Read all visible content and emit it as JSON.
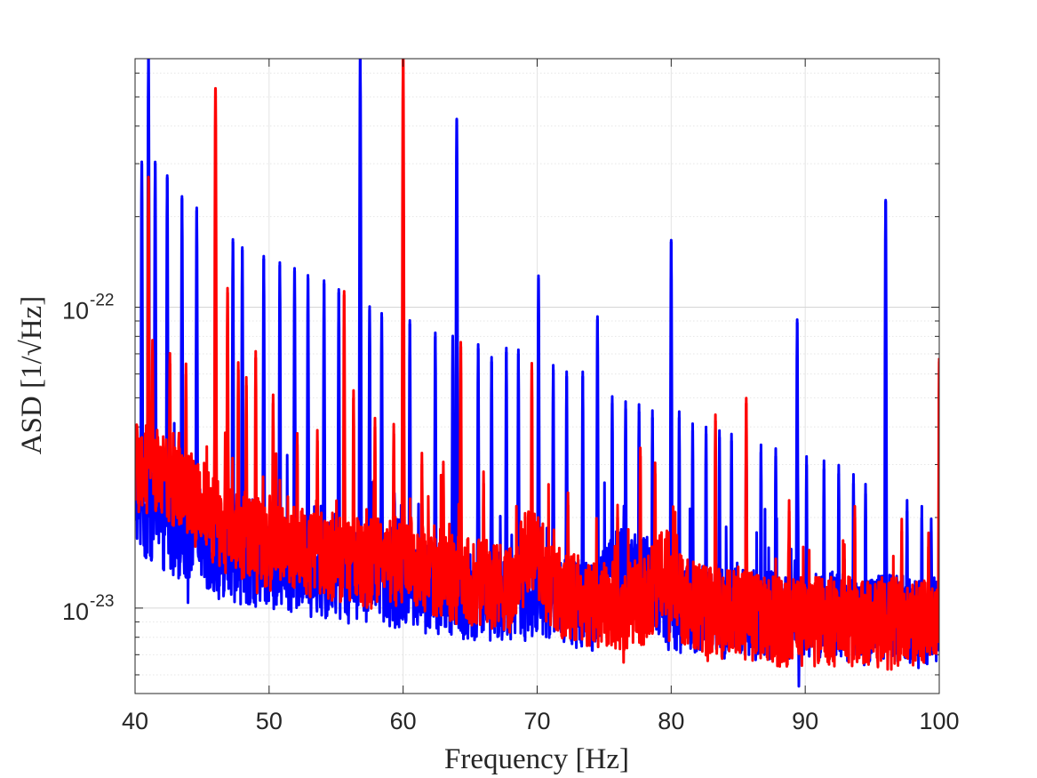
{
  "chart_data": {
    "type": "line",
    "xlabel": "Frequency [Hz]",
    "ylabel": "ASD [1/√Hz]",
    "x_scale": "linear",
    "y_scale": "log",
    "xlim": [
      40,
      100
    ],
    "ylim": [
      5.2e-24,
      6.7e-22
    ],
    "x_ticks": [
      40,
      50,
      60,
      70,
      80,
      90,
      100
    ],
    "x_tick_labels": [
      "40",
      "50",
      "60",
      "70",
      "80",
      "90",
      "100"
    ],
    "y_ticks": [
      1e-23,
      1e-22
    ],
    "y_tick_labels": [
      {
        "base": "10",
        "exp": "-23"
      },
      {
        "base": "10",
        "exp": "-22"
      }
    ],
    "grid": true,
    "minor_grid": true,
    "legend": "none",
    "series": [
      {
        "color": "#0000ff",
        "x": [
          40.0,
          40.5,
          41.0,
          41.5,
          42.0,
          43.0,
          44.0,
          44.5,
          45.0,
          46.0,
          47.0,
          48.0,
          50.0,
          52.0,
          54.0,
          56.0,
          58.0,
          60.0,
          62.0,
          64.0,
          66.0,
          68.0,
          70.0,
          72.0,
          74.0,
          75.5,
          76.0,
          78.0,
          80.0,
          82.0,
          84.0,
          86.0,
          88.0,
          90.0,
          92.0,
          94.0,
          96.0,
          98.0,
          100.0
        ],
        "y": [
          2.4e-23,
          2.1e-23,
          2e-23,
          2e-23,
          1.9e-23,
          1.8e-23,
          1.7e-23,
          2e-23,
          1.7e-23,
          1.5e-23,
          1.5e-23,
          1.45e-23,
          1.4e-23,
          1.35e-23,
          1.3e-23,
          1.3e-23,
          1.25e-23,
          1.2e-23,
          1.15e-23,
          1.1e-23,
          1.1e-23,
          1.1e-23,
          1.15e-23,
          1.05e-23,
          1e-23,
          1.25e-23,
          1.3e-23,
          1.25e-23,
          1e-23,
          1e-23,
          9.5e-24,
          9.5e-24,
          9.5e-24,
          9.5e-24,
          9.5e-24,
          9e-24,
          9.5e-24,
          9e-24,
          9e-24
        ],
        "peaks": [
          {
            "f": 40.5,
            "a": 3e-22
          },
          {
            "f": 41.0,
            "a": 6.7e-22
          },
          {
            "f": 41.5,
            "a": 3e-22
          },
          {
            "f": 42.4,
            "a": 2.7e-22
          },
          {
            "f": 43.5,
            "a": 2.3e-22
          },
          {
            "f": 44.6,
            "a": 2.1e-22
          },
          {
            "f": 46.0,
            "a": 1.8e-22
          },
          {
            "f": 47.3,
            "a": 1.65e-22
          },
          {
            "f": 48.0,
            "a": 1.55e-22
          },
          {
            "f": 49.6,
            "a": 1.45e-22
          },
          {
            "f": 50.8,
            "a": 1.38e-22
          },
          {
            "f": 51.9,
            "a": 1.32e-22
          },
          {
            "f": 52.9,
            "a": 1.25e-22
          },
          {
            "f": 54.1,
            "a": 1.2e-22
          },
          {
            "f": 55.2,
            "a": 1.12e-22
          },
          {
            "f": 56.8,
            "a": 6.7e-22
          },
          {
            "f": 57.5,
            "a": 9.8e-23
          },
          {
            "f": 58.4,
            "a": 9.3e-23
          },
          {
            "f": 60.5,
            "a": 8.8e-23
          },
          {
            "f": 62.4,
            "a": 8e-23
          },
          {
            "f": 63.7,
            "a": 7.8e-23
          },
          {
            "f": 64.0,
            "a": 4.2e-22
          },
          {
            "f": 65.6,
            "a": 7.3e-23
          },
          {
            "f": 66.6,
            "a": 6.6e-23
          },
          {
            "f": 67.7,
            "a": 7.1e-23
          },
          {
            "f": 68.6,
            "a": 7e-23
          },
          {
            "f": 70.1,
            "a": 1.25e-22
          },
          {
            "f": 71.2,
            "a": 6.2e-23
          },
          {
            "f": 72.2,
            "a": 5.9e-23
          },
          {
            "f": 73.4,
            "a": 5.9e-23
          },
          {
            "f": 74.5,
            "a": 9.1e-23
          },
          {
            "f": 75.6,
            "a": 4.8e-23
          },
          {
            "f": 76.6,
            "a": 4.6e-23
          },
          {
            "f": 77.6,
            "a": 4.5e-23
          },
          {
            "f": 78.6,
            "a": 4.3e-23
          },
          {
            "f": 80.0,
            "a": 1.65e-22
          },
          {
            "f": 80.6,
            "a": 4.3e-23
          },
          {
            "f": 81.6,
            "a": 3.9e-23
          },
          {
            "f": 82.6,
            "a": 3.8e-23
          },
          {
            "f": 83.6,
            "a": 3.7e-23
          },
          {
            "f": 84.5,
            "a": 3.6e-23
          },
          {
            "f": 85.6,
            "a": 3.6e-23
          },
          {
            "f": 86.7,
            "a": 3.3e-23
          },
          {
            "f": 87.8,
            "a": 3.2e-23
          },
          {
            "f": 89.4,
            "a": 8.9e-23
          },
          {
            "f": 90.1,
            "a": 3e-23
          },
          {
            "f": 91.4,
            "a": 2.9e-23
          },
          {
            "f": 92.5,
            "a": 2.8e-23
          },
          {
            "f": 93.6,
            "a": 2.6e-23
          },
          {
            "f": 94.5,
            "a": 2.4e-23
          },
          {
            "f": 96.0,
            "a": 2.25e-22
          },
          {
            "f": 97.6,
            "a": 2.1e-23
          },
          {
            "f": 98.7,
            "a": 2e-23
          },
          {
            "f": 99.4,
            "a": 1.8e-23
          }
        ]
      },
      {
        "color": "#ff0000",
        "x": [
          40.0,
          40.5,
          41.0,
          42.0,
          43.0,
          44.0,
          45.0,
          46.0,
          48.0,
          50.0,
          52.0,
          54.0,
          56.0,
          58.0,
          60.0,
          62.0,
          64.0,
          66.0,
          68.0,
          69.5,
          70.5,
          72.0,
          74.0,
          76.0,
          78.0,
          79.5,
          80.5,
          82.0,
          84.0,
          86.0,
          88.0,
          90.0,
          92.0,
          94.0,
          96.0,
          98.0,
          100.0
        ],
        "y": [
          3e-23,
          2.8e-23,
          2.9e-23,
          2.7e-23,
          2.6e-23,
          2.4e-23,
          2.1e-23,
          1.9e-23,
          1.75e-23,
          1.6e-23,
          1.55e-23,
          1.5e-23,
          1.45e-23,
          1.4e-23,
          1.45e-23,
          1.35e-23,
          1.25e-23,
          1.2e-23,
          1.15e-23,
          1.6e-23,
          1.3e-23,
          1.1e-23,
          1.05e-23,
          1e-23,
          1.05e-23,
          1.35e-23,
          1.1e-23,
          1e-23,
          9.5e-24,
          9.3e-24,
          9e-24,
          9e-24,
          9e-24,
          9e-24,
          8.8e-24,
          8.8e-24,
          9e-24
        ],
        "peaks": [
          {
            "f": 41.0,
            "a": 2.65e-22
          },
          {
            "f": 41.3,
            "a": 7.2e-23
          },
          {
            "f": 42.6,
            "a": 6.5e-23
          },
          {
            "f": 43.8,
            "a": 6e-23
          },
          {
            "f": 46.0,
            "a": 5.3e-22
          },
          {
            "f": 46.9,
            "a": 1.12e-22
          },
          {
            "f": 47.7,
            "a": 6.2e-23
          },
          {
            "f": 48.3,
            "a": 5.5e-23
          },
          {
            "f": 49.0,
            "a": 6.8e-23
          },
          {
            "f": 50.3,
            "a": 4.8e-23
          },
          {
            "f": 52.1,
            "a": 3.5e-23
          },
          {
            "f": 53.6,
            "a": 3.6e-23
          },
          {
            "f": 55.6,
            "a": 1.1e-22
          },
          {
            "f": 56.3,
            "a": 5e-23
          },
          {
            "f": 57.9,
            "a": 4e-23
          },
          {
            "f": 59.3,
            "a": 3.8e-23
          },
          {
            "f": 60.0,
            "a": 6.7e-22
          },
          {
            "f": 61.4,
            "a": 3e-23
          },
          {
            "f": 63.0,
            "a": 2.8e-23
          },
          {
            "f": 64.3,
            "a": 7.4e-23
          },
          {
            "f": 66.0,
            "a": 2.6e-23
          },
          {
            "f": 69.6,
            "a": 6.2e-23
          },
          {
            "f": 72.3,
            "a": 2.2e-23
          },
          {
            "f": 76.0,
            "a": 2e-23
          },
          {
            "f": 77.7,
            "a": 3.2e-23
          },
          {
            "f": 78.8,
            "a": 2.8e-23
          },
          {
            "f": 83.3,
            "a": 4.2e-23
          },
          {
            "f": 85.6,
            "a": 4.8e-23
          },
          {
            "f": 88.8,
            "a": 2.1e-23
          },
          {
            "f": 93.7,
            "a": 2e-23
          },
          {
            "f": 97.2,
            "a": 1.8e-23
          },
          {
            "f": 99.2,
            "a": 1.6e-23
          },
          {
            "f": 100.0,
            "a": 6.6e-23
          }
        ]
      }
    ]
  }
}
